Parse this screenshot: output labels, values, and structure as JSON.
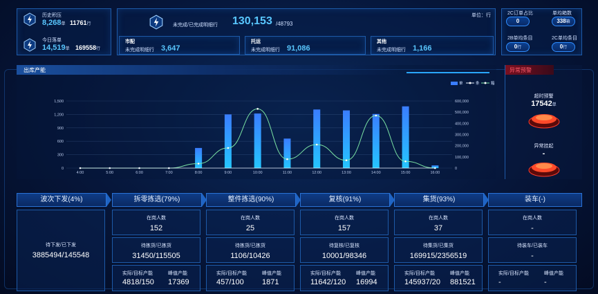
{
  "summary": {
    "history": {
      "label": "历史积压",
      "value": "8,268",
      "unit": "单",
      "rows": "11761",
      "rows_unit": "行"
    },
    "today": {
      "label": "今日落单",
      "value": "14,519",
      "unit": "单",
      "rows": "169558",
      "rows_unit": "行"
    }
  },
  "center": {
    "unit_label": "单位：行",
    "main_label": "未完成/已完成明细行",
    "main_value": "130,153",
    "main_total": "/48793",
    "groups": [
      {
        "title": "市配",
        "label": "未完成明细行",
        "value": "3,647"
      },
      {
        "title": "托运",
        "label": "未完成明细行",
        "value": "91,086"
      },
      {
        "title": "其他",
        "label": "未完成明细行",
        "value": "1,166"
      }
    ]
  },
  "right_stats": [
    {
      "label": "2C订单占比",
      "value": "0",
      "unit": ""
    },
    {
      "label": "单均箱数",
      "value": "338",
      "unit": "箱"
    },
    {
      "label": "2B单均条目",
      "value": "0",
      "unit": "行"
    },
    {
      "label": "2C单均条目",
      "value": "0",
      "unit": "行"
    }
  ],
  "chart_panel": {
    "title": "出库产能"
  },
  "chart_data": {
    "type": "bar",
    "categories": [
      "4:00",
      "5:00",
      "6:00",
      "7:00",
      "8:00",
      "9:00",
      "10:00",
      "11:00",
      "12:00",
      "13:00",
      "14:00",
      "15:00",
      "16:00"
    ],
    "series": [
      {
        "name": "单",
        "type": "bar",
        "values": [
          0,
          0,
          0,
          0,
          450,
          1200,
          1220,
          660,
          1310,
          1290,
          1210,
          1380,
          60
        ]
      },
      {
        "name": "条",
        "type": "line",
        "values": [
          0,
          0,
          0,
          0,
          0,
          0,
          0,
          0,
          0,
          0,
          0,
          0,
          0
        ]
      },
      {
        "name": "箱",
        "type": "line",
        "values": [
          0,
          0,
          0,
          0,
          40000,
          180000,
          530000,
          80000,
          210000,
          70000,
          470000,
          60000,
          0
        ]
      }
    ],
    "ylim_left": [
      0,
      1500
    ],
    "ylim_right": [
      0,
      600000
    ],
    "yticks_left": [
      "0",
      "300",
      "600",
      "900",
      "1,200",
      "1,500"
    ],
    "yticks_right": [
      "0",
      "100,000",
      "200,000",
      "300,000",
      "400,000",
      "500,000",
      "600,000"
    ],
    "legend_position": "top-right",
    "grid": true
  },
  "alerts": {
    "title": "异常预警",
    "timeout_label": "超时预警",
    "timeout_value": "17542",
    "timeout_unit": "单",
    "hang_label": "异常挂起",
    "hang_value": "-"
  },
  "stages": [
    {
      "name": "波次下发(4%)"
    },
    {
      "name": "拆零拣选(79%)",
      "c1_label": "在岗人数",
      "c1_value": "152",
      "c2_label": "待拣货/已拣货",
      "c2_value": "31450/115505",
      "c3a_label": "实际/目标产能",
      "c3a_value": "4818/150",
      "c3b_label": "峰值产能",
      "c3b_value": "17369"
    },
    {
      "name": "整件拣选(90%)",
      "c1_label": "在岗人数",
      "c1_value": "25",
      "c2_label": "待拣货/已拣货",
      "c2_value": "1106/10426",
      "c3a_label": "实际/目标产能",
      "c3a_value": "457/100",
      "c3b_label": "峰值产能",
      "c3b_value": "1871"
    },
    {
      "name": "复核(91%)",
      "c1_label": "在岗人数",
      "c1_value": "157",
      "c2_label": "待复核/已复核",
      "c2_value": "10001/98346",
      "c3a_label": "实际/目标产能",
      "c3a_value": "11642/120",
      "c3b_label": "峰值产能",
      "c3b_value": "16994"
    },
    {
      "name": "集货(93%)",
      "c1_label": "在岗人数",
      "c1_value": "37",
      "c2_label": "待集货/已集货",
      "c2_value": "169915/2356519",
      "c3a_label": "实际/目标产能",
      "c3a_value": "145937/20",
      "c3b_label": "峰值产能",
      "c3b_value": "881521"
    },
    {
      "name": "装车(-)",
      "c1_label": "在岗人数",
      "c1_value": "-",
      "c2_label": "待装车/已装车",
      "c2_value": "-",
      "c3a_label": "实际/目标产能",
      "c3a_value": "-",
      "c3b_label": "峰值产能",
      "c3b_value": "-"
    }
  ],
  "wave": {
    "label": "待下发/已下发",
    "value": "3885494/145548"
  }
}
